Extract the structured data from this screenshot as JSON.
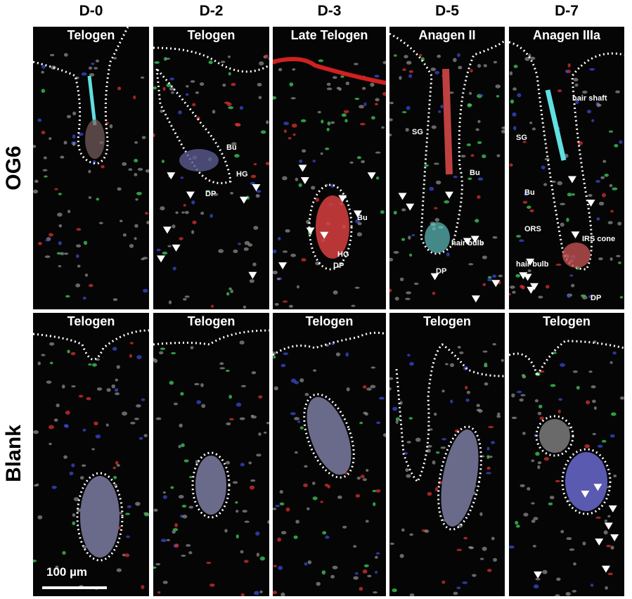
{
  "columns": [
    "D-0",
    "D-2",
    "D-3",
    "D-5",
    "D-7"
  ],
  "rows": [
    "OG6",
    "Blank"
  ],
  "og6_stages": [
    "Telogen",
    "Telogen",
    "Late Telogen",
    "Anagen II",
    "Anagen IIIa"
  ],
  "blank_stages": [
    "Telogen",
    "Telogen",
    "Telogen",
    "Telogen",
    "Telogen"
  ],
  "annotations": {
    "d2": {
      "bu": "Bu",
      "hg": "HG",
      "dp": "DP"
    },
    "d3": {
      "bu": "Bu",
      "hg": "HG",
      "dp": "DP"
    },
    "d5": {
      "sg": "SG",
      "bu": "Bu",
      "hair_bulb": "hair bulb",
      "dp": "DP"
    },
    "d7": {
      "hair_shaft": "hair shaft",
      "sg": "SG",
      "bu": "Bu",
      "ors": "ORS",
      "irs_cone": "IRS cone",
      "hair_bulb": "hair bulb",
      "dp": "DP"
    }
  },
  "scale_bar": "100 µm",
  "marker": "white arrowheads",
  "colors": {
    "background": "#000000",
    "outline": "#ffffff",
    "nuclei": "#8a8a8a",
    "red": "#d83030",
    "green": "#3fcf5a",
    "blue": "#3a4ad0",
    "cyan": "#60e0e0"
  }
}
